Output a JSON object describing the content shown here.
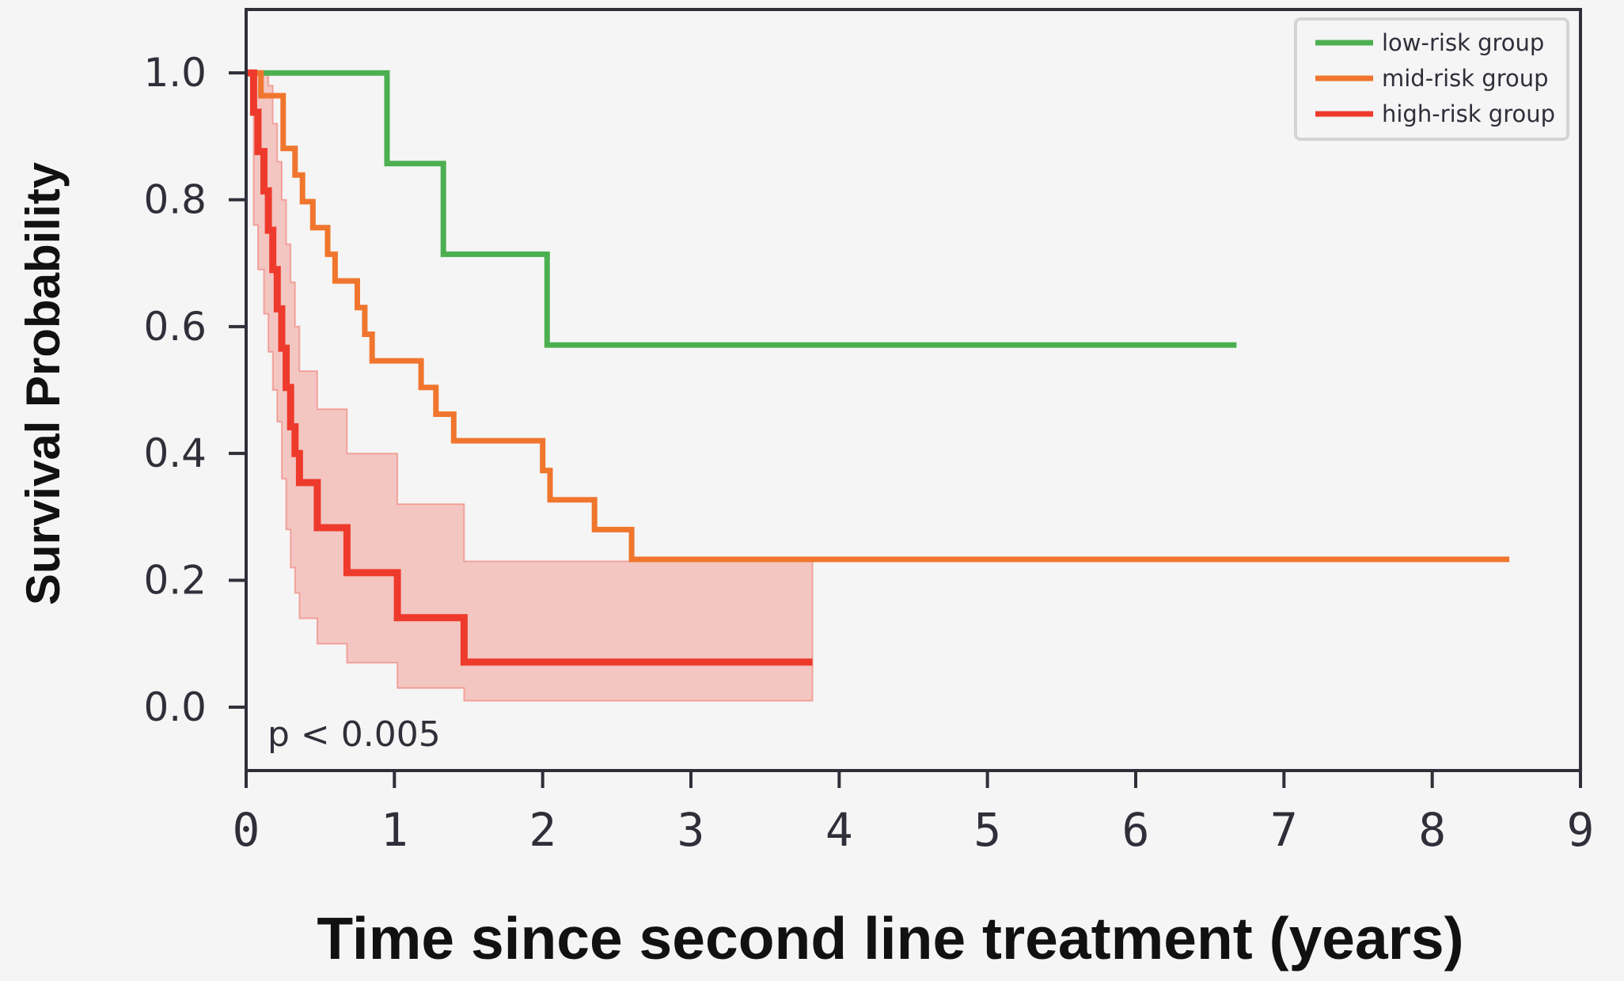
{
  "chart_data": {
    "type": "line",
    "subtype": "kaplan-meier-step",
    "xlabel": "Time since second line treatment (years)",
    "ylabel": "Survival Probability",
    "xlim": [
      0,
      9
    ],
    "ylim": [
      -0.1,
      1.1
    ],
    "xticks": [
      0,
      1,
      2,
      3,
      4,
      5,
      6,
      7,
      8,
      9
    ],
    "yticks": [
      0.0,
      0.2,
      0.4,
      0.6,
      0.8,
      1.0
    ],
    "xtick_labels": [
      "0",
      "1",
      "2",
      "3",
      "4",
      "5",
      "6",
      "7",
      "8",
      "9"
    ],
    "ytick_labels": [
      "0.0",
      "0.2",
      "0.4",
      "0.6",
      "0.8",
      "1.0"
    ],
    "grid": false,
    "legend_position": "top-right",
    "annotation": "p < 0.005",
    "series": [
      {
        "name": "low-risk group",
        "color": "#4caf50",
        "x": [
          0,
          0.95,
          1.33,
          2.03,
          6.68
        ],
        "y": [
          1.0,
          0.857,
          0.714,
          0.571,
          0.571
        ]
      },
      {
        "name": "mid-risk group",
        "color": "#f0762e",
        "x": [
          0,
          0.1,
          0.25,
          0.33,
          0.38,
          0.45,
          0.55,
          0.6,
          0.75,
          0.8,
          0.85,
          0.9,
          1.18,
          1.28,
          1.33,
          1.4,
          2.0,
          2.05,
          2.35,
          2.6,
          8.52
        ],
        "y": [
          1.0,
          0.964,
          0.881,
          0.839,
          0.797,
          0.756,
          0.714,
          0.672,
          0.63,
          0.588,
          0.546,
          0.546,
          0.504,
          0.462,
          0.462,
          0.42,
          0.373,
          0.327,
          0.28,
          0.233,
          0.233
        ]
      },
      {
        "name": "high-risk group",
        "color": "#ee3a2c",
        "x": [
          0,
          0.05,
          0.08,
          0.12,
          0.15,
          0.18,
          0.21,
          0.24,
          0.27,
          0.3,
          0.33,
          0.36,
          0.48,
          0.68,
          1.02,
          1.47,
          3.82
        ],
        "y": [
          1.0,
          0.938,
          0.876,
          0.814,
          0.752,
          0.69,
          0.628,
          0.566,
          0.504,
          0.442,
          0.4,
          0.354,
          0.283,
          0.212,
          0.141,
          0.071,
          0.071
        ],
        "ci_lower": [
          1.0,
          0.76,
          0.69,
          0.62,
          0.56,
          0.5,
          0.45,
          0.36,
          0.28,
          0.22,
          0.18,
          0.14,
          0.1,
          0.07,
          0.03,
          0.01,
          0.01
        ],
        "ci_upper": [
          1.0,
          1.0,
          1.0,
          1.0,
          0.98,
          0.92,
          0.86,
          0.8,
          0.73,
          0.67,
          0.6,
          0.53,
          0.47,
          0.4,
          0.32,
          0.23,
          0.23
        ]
      }
    ]
  }
}
